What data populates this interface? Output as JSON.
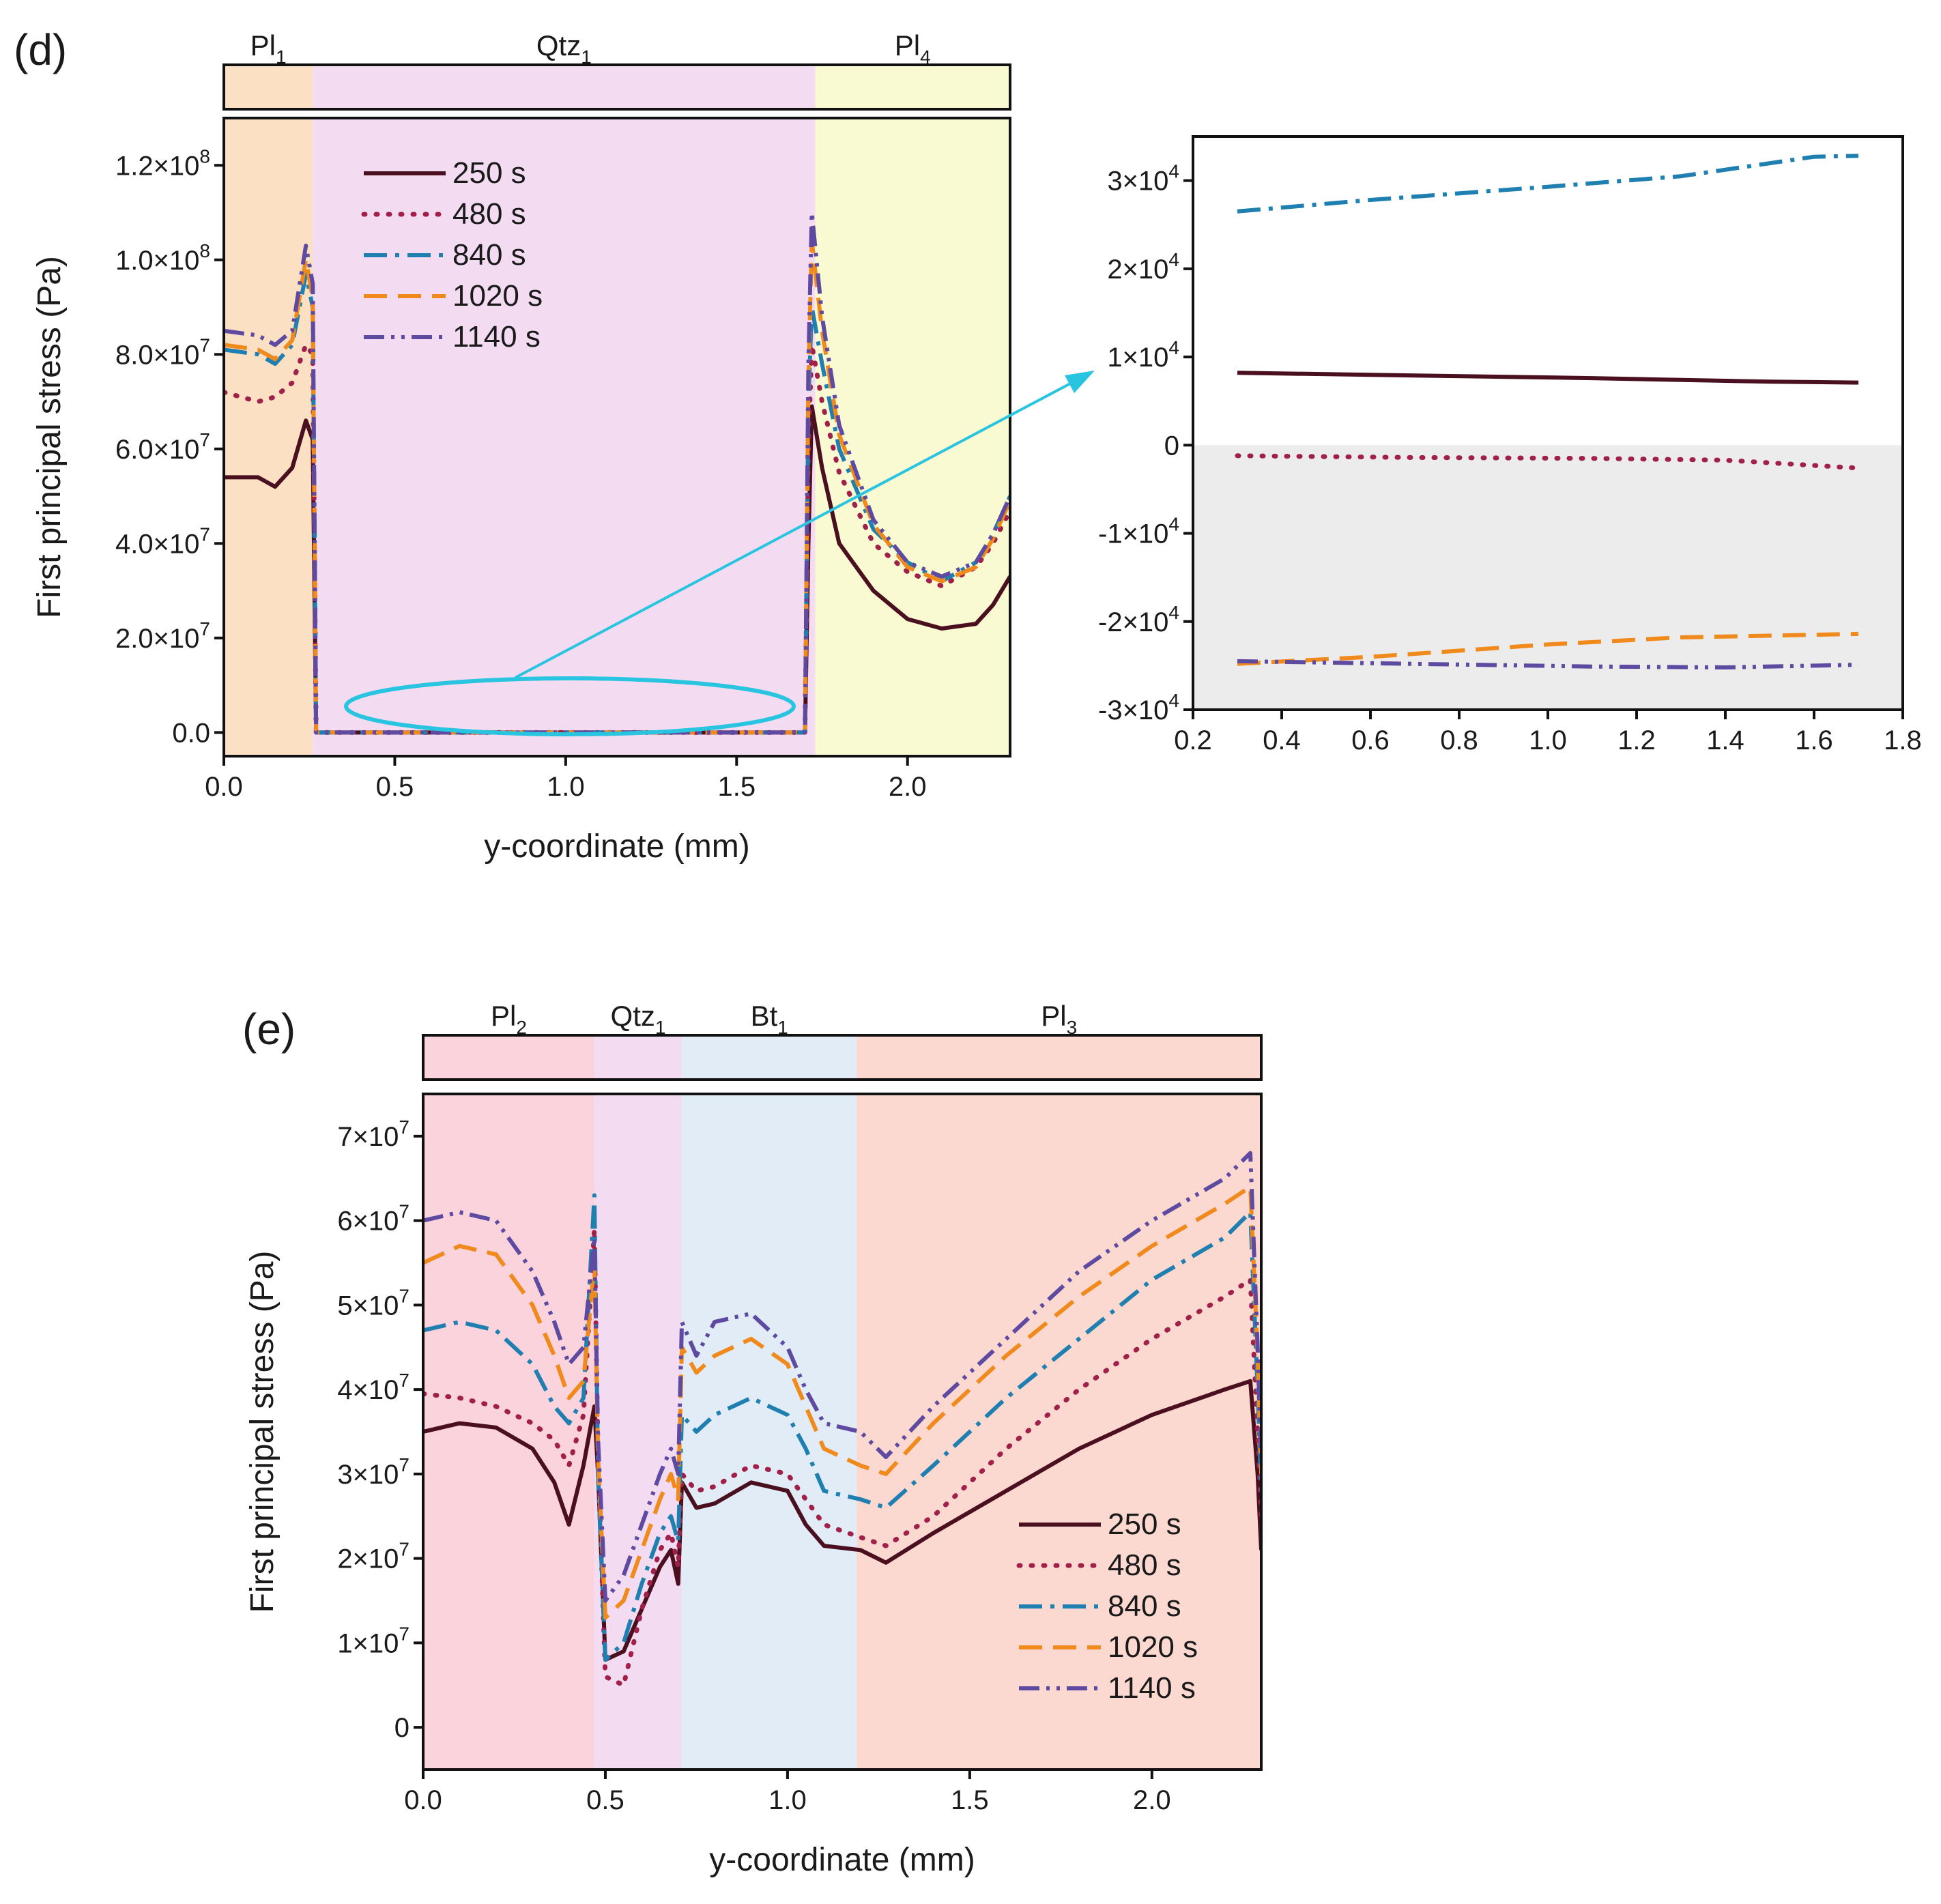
{
  "panels": {
    "d_label": "(d)",
    "e_label": "(e)"
  },
  "colors": {
    "250 s": "#4a1020",
    "480 s": "#a0204a",
    "840 s": "#1f7fb0",
    "1020 s": "#f08a1c",
    "1140 s": "#5e4aa0",
    "Pl1": "#fbe0c4",
    "Qtz1": "#f3dcf1",
    "Pl4": "#fafad2",
    "Pl2": "#fbd3dc",
    "Bt1": "#e1ecf6",
    "Pl3": "#fcd9d0",
    "zoom_ellipse": "#29c4e0",
    "inset_negative_band": "#ececec"
  },
  "chart_data": [
    {
      "id": "d-main",
      "type": "line",
      "xlabel": "y-coordinate (mm)",
      "ylabel": "First principal stress (Pa)",
      "xlim": [
        0.0,
        2.3
      ],
      "ylim": [
        -5000000,
        130000000
      ],
      "xticks": [
        0.0,
        0.5,
        1.0,
        1.5,
        2.0
      ],
      "xtick_labels": [
        "0.0",
        "0.5",
        "1.0",
        "1.5",
        "2.0"
      ],
      "yticks": [
        0,
        20000000,
        40000000,
        60000000,
        80000000,
        100000000,
        120000000
      ],
      "ytick_labels": [
        "0.0",
        "2.0×10",
        "4.0×10",
        "6.0×10",
        "8.0×10",
        "1.0×10",
        "1.2×10"
      ],
      "ytick_exps": [
        "",
        "7",
        "7",
        "7",
        "7",
        "8",
        "8"
      ],
      "legend_position": "upper-left",
      "phases": [
        {
          "name": "Pl",
          "sub": "1",
          "color_key": "Pl1",
          "from": 0.0,
          "to": 0.26
        },
        {
          "name": "Qtz",
          "sub": "1",
          "color_key": "Qtz1",
          "from": 0.26,
          "to": 1.73
        },
        {
          "name": "Pl",
          "sub": "4",
          "color_key": "Pl4",
          "from": 1.73,
          "to": 2.3
        }
      ],
      "series": [
        {
          "name": "250 s",
          "dash": "solid",
          "x": [
            0.0,
            0.1,
            0.15,
            0.2,
            0.24,
            0.26,
            0.27,
            0.3,
            1.0,
            1.7,
            1.71,
            1.72,
            1.75,
            1.8,
            1.9,
            2.0,
            2.1,
            2.2,
            2.25,
            2.3
          ],
          "y": [
            54000000,
            54000000,
            52000000,
            56000000,
            66000000,
            62000000,
            0,
            0,
            0,
            0,
            40000000,
            69000000,
            56000000,
            40000000,
            30000000,
            24000000,
            22000000,
            23000000,
            27000000,
            33000000
          ]
        },
        {
          "name": "480 s",
          "dash": "dot",
          "x": [
            0.0,
            0.1,
            0.15,
            0.2,
            0.24,
            0.26,
            0.27,
            0.3,
            1.0,
            1.7,
            1.71,
            1.72,
            1.75,
            1.8,
            1.9,
            2.0,
            2.1,
            2.2,
            2.25,
            2.3
          ],
          "y": [
            72000000,
            70000000,
            71000000,
            74000000,
            82000000,
            80000000,
            0,
            0,
            0,
            0,
            60000000,
            82000000,
            70000000,
            55000000,
            40000000,
            34000000,
            31000000,
            35000000,
            40000000,
            47000000
          ]
        },
        {
          "name": "840 s",
          "dash": "dashdot",
          "x": [
            0.0,
            0.1,
            0.15,
            0.2,
            0.24,
            0.26,
            0.27,
            0.3,
            1.0,
            1.7,
            1.71,
            1.72,
            1.75,
            1.8,
            1.9,
            2.0,
            2.1,
            2.2,
            2.25,
            2.3
          ],
          "y": [
            81000000,
            80000000,
            78000000,
            82000000,
            97000000,
            90000000,
            0,
            0,
            0,
            0,
            70000000,
            90000000,
            78000000,
            60000000,
            43000000,
            36000000,
            32000000,
            36000000,
            42000000,
            50000000
          ]
        },
        {
          "name": "1020 s",
          "dash": "dash",
          "x": [
            0.0,
            0.1,
            0.15,
            0.2,
            0.24,
            0.26,
            0.27,
            0.3,
            1.0,
            1.7,
            1.71,
            1.72,
            1.75,
            1.8,
            1.9,
            2.0,
            2.1,
            2.2,
            2.25,
            2.3
          ],
          "y": [
            82000000,
            81000000,
            79000000,
            83000000,
            100000000,
            92000000,
            0,
            0,
            0,
            0,
            75000000,
            104000000,
            85000000,
            63000000,
            44000000,
            35000000,
            32000000,
            35000000,
            41000000,
            49000000
          ]
        },
        {
          "name": "1140 s",
          "dash": "dashdotdot",
          "x": [
            0.0,
            0.1,
            0.15,
            0.2,
            0.24,
            0.26,
            0.27,
            0.3,
            1.0,
            1.7,
            1.71,
            1.72,
            1.75,
            1.8,
            1.9,
            2.0,
            2.1,
            2.2,
            2.25,
            2.3
          ],
          "y": [
            85000000,
            84000000,
            82000000,
            85000000,
            103000000,
            95000000,
            0,
            0,
            0,
            0,
            78000000,
            110000000,
            88000000,
            65000000,
            45000000,
            36000000,
            33000000,
            36000000,
            42000000,
            50000000
          ]
        }
      ]
    },
    {
      "id": "d-inset",
      "type": "line",
      "xlim": [
        0.2,
        1.8
      ],
      "ylim": [
        -30000,
        35000
      ],
      "xticks": [
        0.2,
        0.4,
        0.6,
        0.8,
        1.0,
        1.2,
        1.4,
        1.6,
        1.8
      ],
      "xtick_labels": [
        "0.2",
        "0.4",
        "0.6",
        "0.8",
        "1.0",
        "1.2",
        "1.4",
        "1.6",
        "1.8"
      ],
      "yticks": [
        -30000,
        -20000,
        -10000,
        0,
        10000,
        20000,
        30000
      ],
      "ytick_labels": [
        "-3×10",
        "-2×10",
        "-1×10",
        "0",
        "1×10",
        "2×10",
        "3×10"
      ],
      "ytick_exps": [
        "4",
        "4",
        "4",
        "",
        "4",
        "4",
        "4"
      ],
      "series": [
        {
          "name": "250 s",
          "dash": "solid",
          "x": [
            0.3,
            0.7,
            1.1,
            1.5,
            1.7
          ],
          "y": [
            8200,
            7900,
            7600,
            7200,
            7100
          ]
        },
        {
          "name": "480 s",
          "dash": "dot",
          "x": [
            0.3,
            0.7,
            1.1,
            1.4,
            1.7
          ],
          "y": [
            -1200,
            -1400,
            -1500,
            -1700,
            -2600
          ]
        },
        {
          "name": "840 s",
          "dash": "dashdot",
          "x": [
            0.3,
            0.6,
            1.0,
            1.3,
            1.6,
            1.7
          ],
          "y": [
            26500,
            27800,
            29300,
            30500,
            32700,
            32800
          ]
        },
        {
          "name": "1020 s",
          "dash": "dash",
          "x": [
            0.3,
            0.6,
            1.0,
            1.3,
            1.7
          ],
          "y": [
            -24800,
            -24000,
            -22600,
            -21800,
            -21400
          ]
        },
        {
          "name": "1140 s",
          "dash": "dashdotdot",
          "x": [
            0.3,
            0.7,
            1.1,
            1.4,
            1.7
          ],
          "y": [
            -24500,
            -24800,
            -25100,
            -25200,
            -24900
          ]
        }
      ]
    },
    {
      "id": "e-main",
      "type": "line",
      "xlabel": "y-coordinate (mm)",
      "ylabel": "First principal stress (Pa)",
      "xlim": [
        0.0,
        2.3
      ],
      "ylim": [
        -5000000,
        75000000
      ],
      "xticks": [
        0.0,
        0.5,
        1.0,
        1.5,
        2.0
      ],
      "xtick_labels": [
        "0.0",
        "0.5",
        "1.0",
        "1.5",
        "2.0"
      ],
      "yticks": [
        0,
        10000000,
        20000000,
        30000000,
        40000000,
        50000000,
        60000000,
        70000000
      ],
      "ytick_labels": [
        "0",
        "1×10",
        "2×10",
        "3×10",
        "4×10",
        "5×10",
        "6×10",
        "7×10"
      ],
      "ytick_exps": [
        "",
        "7",
        "7",
        "7",
        "7",
        "7",
        "7",
        "7"
      ],
      "legend_position": "lower-right",
      "phases": [
        {
          "name": "Pl",
          "sub": "2",
          "color_key": "Pl2",
          "from": 0.0,
          "to": 0.47
        },
        {
          "name": "Qtz",
          "sub": "1",
          "color_key": "Qtz1",
          "from": 0.47,
          "to": 0.71
        },
        {
          "name": "Bt",
          "sub": "1",
          "color_key": "Bt1",
          "from": 0.71,
          "to": 1.19
        },
        {
          "name": "Pl",
          "sub": "3",
          "color_key": "Pl3",
          "from": 1.19,
          "to": 2.3
        }
      ],
      "series": [
        {
          "name": "250 s",
          "dash": "solid",
          "x": [
            0.0,
            0.1,
            0.2,
            0.3,
            0.36,
            0.4,
            0.44,
            0.47,
            0.48,
            0.5,
            0.55,
            0.6,
            0.65,
            0.68,
            0.7,
            0.71,
            0.75,
            0.8,
            0.9,
            1.0,
            1.05,
            1.1,
            1.2,
            1.27,
            1.4,
            1.6,
            1.8,
            2.0,
            2.2,
            2.27,
            2.29,
            2.3
          ],
          "y": [
            35000000,
            36000000,
            35500000,
            33000000,
            29000000,
            24000000,
            31000000,
            38000000,
            30000000,
            8000000,
            9000000,
            14000000,
            19000000,
            21000000,
            17000000,
            29000000,
            26000000,
            26500000,
            29000000,
            28000000,
            24000000,
            21500000,
            21000000,
            19500000,
            23000000,
            28000000,
            33000000,
            37000000,
            40000000,
            41000000,
            30000000,
            21000000
          ]
        },
        {
          "name": "480 s",
          "dash": "dot",
          "x": [
            0.0,
            0.1,
            0.2,
            0.3,
            0.36,
            0.4,
            0.44,
            0.47,
            0.48,
            0.5,
            0.55,
            0.6,
            0.65,
            0.68,
            0.7,
            0.71,
            0.75,
            0.8,
            0.9,
            1.0,
            1.05,
            1.1,
            1.2,
            1.27,
            1.4,
            1.6,
            1.8,
            2.0,
            2.2,
            2.27,
            2.29,
            2.3
          ],
          "y": [
            39500000,
            39000000,
            38000000,
            36000000,
            34000000,
            31000000,
            37000000,
            59000000,
            32000000,
            6000000,
            5000000,
            14000000,
            21000000,
            23000000,
            19000000,
            30000000,
            28000000,
            28500000,
            31000000,
            30000000,
            27000000,
            24000000,
            22500000,
            21500000,
            25000000,
            33000000,
            40000000,
            46000000,
            51000000,
            53000000,
            35000000,
            25000000
          ]
        },
        {
          "name": "840 s",
          "dash": "dashdot",
          "x": [
            0.0,
            0.1,
            0.2,
            0.3,
            0.36,
            0.4,
            0.44,
            0.47,
            0.48,
            0.5,
            0.55,
            0.6,
            0.65,
            0.68,
            0.7,
            0.71,
            0.75,
            0.8,
            0.9,
            1.0,
            1.05,
            1.1,
            1.2,
            1.27,
            1.4,
            1.6,
            1.8,
            2.0,
            2.2,
            2.27,
            2.29,
            2.3
          ],
          "y": [
            47000000,
            48000000,
            47000000,
            43000000,
            38000000,
            36000000,
            39000000,
            63000000,
            30000000,
            8000000,
            10000000,
            17000000,
            23000000,
            25000000,
            22000000,
            37000000,
            35000000,
            37000000,
            39000000,
            37000000,
            33000000,
            28000000,
            27000000,
            26000000,
            31000000,
            39000000,
            46000000,
            53000000,
            58000000,
            61000000,
            40000000,
            28000000
          ]
        },
        {
          "name": "1020 s",
          "dash": "dash",
          "x": [
            0.0,
            0.1,
            0.2,
            0.3,
            0.36,
            0.4,
            0.44,
            0.47,
            0.48,
            0.5,
            0.55,
            0.6,
            0.65,
            0.68,
            0.7,
            0.71,
            0.75,
            0.8,
            0.9,
            1.0,
            1.05,
            1.1,
            1.2,
            1.27,
            1.4,
            1.6,
            1.8,
            2.0,
            2.2,
            2.27,
            2.29,
            2.3
          ],
          "y": [
            55000000,
            57000000,
            56000000,
            50000000,
            44000000,
            39000000,
            41000000,
            55000000,
            32000000,
            13000000,
            15000000,
            21000000,
            27000000,
            30000000,
            27000000,
            45000000,
            42000000,
            44000000,
            46000000,
            43000000,
            38000000,
            33000000,
            31000000,
            30000000,
            36000000,
            44000000,
            51000000,
            57000000,
            62000000,
            64000000,
            44000000,
            30000000
          ]
        },
        {
          "name": "1140 s",
          "dash": "dashdotdot",
          "x": [
            0.0,
            0.1,
            0.2,
            0.3,
            0.36,
            0.4,
            0.44,
            0.47,
            0.48,
            0.5,
            0.55,
            0.6,
            0.65,
            0.68,
            0.7,
            0.71,
            0.75,
            0.8,
            0.9,
            1.0,
            1.05,
            1.1,
            1.2,
            1.27,
            1.4,
            1.6,
            1.8,
            2.0,
            2.2,
            2.27,
            2.29,
            2.3
          ],
          "y": [
            60000000,
            61000000,
            60000000,
            54000000,
            48000000,
            43000000,
            45000000,
            58000000,
            34000000,
            15000000,
            18000000,
            24000000,
            30000000,
            33000000,
            30000000,
            48000000,
            44000000,
            48000000,
            49000000,
            45000000,
            40000000,
            36000000,
            35000000,
            32000000,
            38000000,
            46000000,
            54000000,
            60000000,
            65000000,
            68000000,
            45000000,
            31000000
          ]
        }
      ]
    }
  ]
}
